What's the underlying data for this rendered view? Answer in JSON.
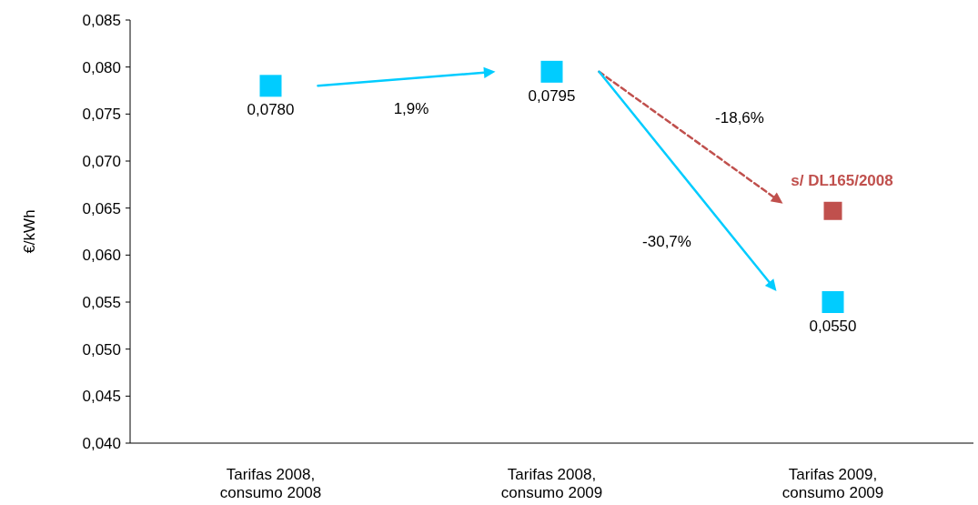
{
  "chart_data": {
    "type": "scatter",
    "ylabel": "€/kWh",
    "categories": [
      "Tarifas 2008, consumo 2008",
      "Tarifas 2008, consumo 2009",
      "Tarifas 2009, consumo 2009"
    ],
    "series": [
      {
        "color": "#00ccff",
        "values": [
          0.078,
          0.0795,
          0.055
        ],
        "value_labels": [
          "0,0780",
          "0,0795",
          "0,0550"
        ],
        "marker": "square",
        "line_style": "solid"
      },
      {
        "name": "s/ DL165/2008",
        "color": "#c0504d",
        "values": [
          null,
          null,
          0.0647
        ],
        "marker": "square",
        "line_style": "dashed"
      }
    ],
    "ylim": [
      0.04,
      0.085
    ],
    "yticks": [
      {
        "value": 0.04,
        "label": "0,040"
      },
      {
        "value": 0.045,
        "label": "0,045"
      },
      {
        "value": 0.05,
        "label": "0,050"
      },
      {
        "value": 0.055,
        "label": "0,055"
      },
      {
        "value": 0.06,
        "label": "0,060"
      },
      {
        "value": 0.065,
        "label": "0,065"
      },
      {
        "value": 0.07,
        "label": "0,070"
      },
      {
        "value": 0.075,
        "label": "0,075"
      },
      {
        "value": 0.08,
        "label": "0,080"
      },
      {
        "value": 0.085,
        "label": "0,085"
      }
    ],
    "annotations": [
      "1,9%",
      "-18,6%",
      "-30,7%"
    ],
    "grid": false
  }
}
